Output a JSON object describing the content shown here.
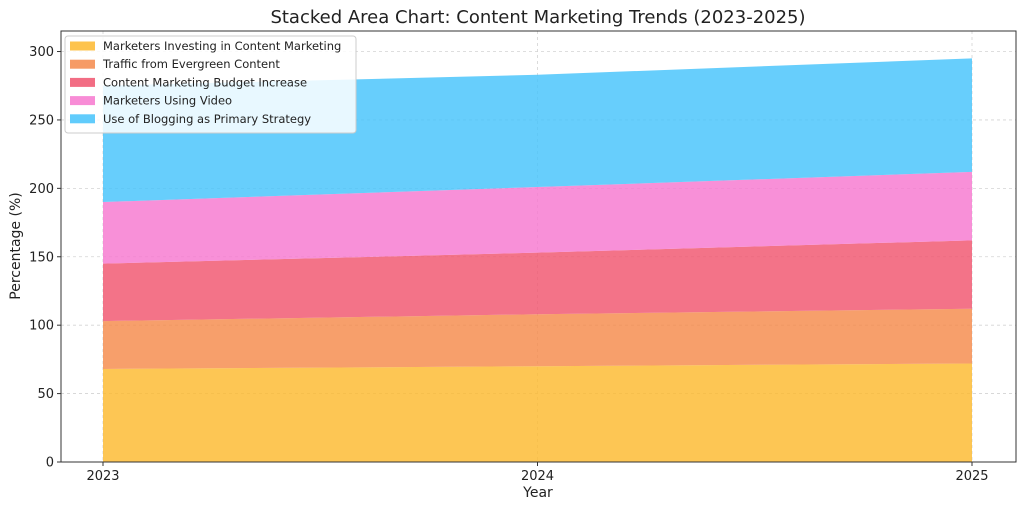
{
  "chart_data": {
    "type": "area",
    "stacked": true,
    "title": "Stacked Area Chart: Content Marketing Trends (2023-2025)",
    "xlabel": "Year",
    "ylabel": "Percentage (%)",
    "categories": [
      "2023",
      "2024",
      "2025"
    ],
    "ylim": [
      0,
      315
    ],
    "yticks": [
      0,
      50,
      100,
      150,
      200,
      250,
      300
    ],
    "grid": true,
    "legend_position": "top-left",
    "series": [
      {
        "name": "Marketers Investing in Content Marketing",
        "values": [
          68,
          70,
          72
        ],
        "color": "#FDB92E"
      },
      {
        "name": "Traffic from Evergreen Content",
        "values": [
          35,
          38,
          40
        ],
        "color": "#F58A4B"
      },
      {
        "name": "Content Marketing Budget Increase",
        "values": [
          42,
          45,
          50
        ],
        "color": "#F0546E"
      },
      {
        "name": "Marketers Using Video",
        "values": [
          45,
          48,
          50
        ],
        "color": "#F778CF"
      },
      {
        "name": "Use of Blogging as Primary Strategy",
        "values": [
          85,
          82,
          83
        ],
        "color": "#45C3FB"
      }
    ]
  }
}
